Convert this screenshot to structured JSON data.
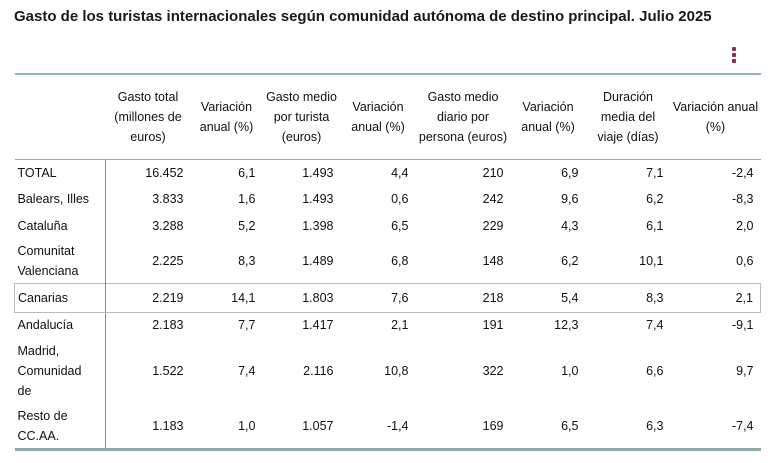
{
  "title": "Gasto de los turistas internacionales según comunidad autónoma de destino principal. Julio 2025",
  "menu_icon": "kebab-vertical-icon",
  "accent_color": "#8b2d4d",
  "headers": [
    "",
    "Gasto total (millones de euros)",
    "Variación anual (%)",
    "Gasto medio por turista (euros)",
    "Variación anual (%)",
    "Gasto medio diario por persona (euros)",
    "Variación anual (%)",
    "Duración media del viaje (días)",
    "Variación anual (%)"
  ],
  "rows": [
    {
      "label": "TOTAL",
      "values": [
        "16.452",
        "6,1",
        "1.493",
        "4,4",
        "210",
        "6,9",
        "7,1",
        "-2,4"
      ]
    },
    {
      "label": "Balears, Illes",
      "values": [
        "3.833",
        "1,6",
        "1.493",
        "0,6",
        "242",
        "9,6",
        "6,2",
        "-8,3"
      ]
    },
    {
      "label": "Cataluña",
      "values": [
        "3.288",
        "5,2",
        "1.398",
        "6,5",
        "229",
        "4,3",
        "6,1",
        "2,0"
      ]
    },
    {
      "label": "Comunitat Valenciana",
      "values": [
        "2.225",
        "8,3",
        "1.489",
        "6,8",
        "148",
        "6,2",
        "10,1",
        "0,6"
      ]
    },
    {
      "label": "Canarias",
      "values": [
        "2.219",
        "14,1",
        "1.803",
        "7,6",
        "218",
        "5,4",
        "8,3",
        "2,1"
      ],
      "highlighted": true
    },
    {
      "label": "Andalucía",
      "values": [
        "2.183",
        "7,7",
        "1.417",
        "2,1",
        "191",
        "12,3",
        "7,4",
        "-9,1"
      ]
    },
    {
      "label": "Madrid, Comunidad de",
      "values": [
        "1.522",
        "7,4",
        "2.116",
        "10,8",
        "322",
        "1,0",
        "6,6",
        "9,7"
      ]
    },
    {
      "label": "Resto de CC.AA.",
      "values": [
        "1.183",
        "1,0",
        "1.057",
        "-1,4",
        "169",
        "6,5",
        "6,3",
        "-7,4"
      ]
    }
  ]
}
